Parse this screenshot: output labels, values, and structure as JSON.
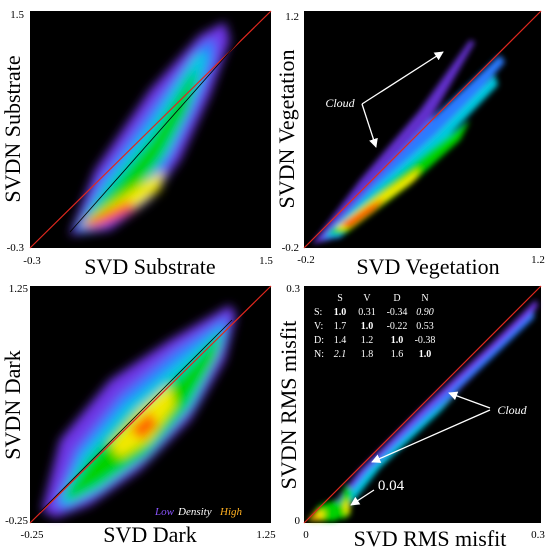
{
  "colors": {
    "background": "#000000",
    "one_to_one_line": "#e0281e",
    "density_low": "#7a3cff",
    "density_mid": "#00d200",
    "density_high": "#ff5a00",
    "text_white": "#ffffff",
    "legend_low": "#8a55ff",
    "legend_high": "#ffb020"
  },
  "chart_data": [
    {
      "type": "heatmap",
      "title": "",
      "xlabel": "SVD Substrate",
      "ylabel": "SVDN Substrate",
      "xlim": [
        -0.3,
        1.5
      ],
      "ylim": [
        -0.3,
        1.5
      ],
      "x_ticks": [
        "-0.3",
        "1.5"
      ],
      "y_ticks": [
        "-0.3",
        "1.5"
      ],
      "one_to_one_line": true
    },
    {
      "type": "heatmap",
      "title": "",
      "xlabel": "SVD Vegetation",
      "ylabel": "SVDN Vegetation",
      "xlim": [
        -0.2,
        1.2
      ],
      "ylim": [
        -0.2,
        1.2
      ],
      "x_ticks": [
        "-0.2",
        "1.2"
      ],
      "y_ticks": [
        "-0.2",
        "1.2"
      ],
      "one_to_one_line": true,
      "annotations": [
        "Cloud"
      ]
    },
    {
      "type": "heatmap",
      "title": "",
      "xlabel": "SVD Dark",
      "ylabel": "SVDN Dark",
      "xlim": [
        -0.25,
        1.25
      ],
      "ylim": [
        -0.25,
        1.25
      ],
      "x_ticks": [
        "-0.25",
        "1.25"
      ],
      "y_ticks": [
        "-0.25",
        "1.25"
      ],
      "one_to_one_line": true,
      "legend": {
        "low": "Low",
        "mid": "Density",
        "high": "High",
        "placement": "bottom-right"
      }
    },
    {
      "type": "heatmap",
      "title": "",
      "xlabel": "SVD RMS misfit",
      "ylabel": "SVDN RMS misfit",
      "xlim": [
        0,
        0.3
      ],
      "ylim": [
        0,
        0.3
      ],
      "x_ticks": [
        "0",
        "0.3"
      ],
      "y_ticks": [
        "0",
        "0.3"
      ],
      "one_to_one_line": true,
      "annotations": [
        "Cloud",
        "0.04"
      ],
      "inset_table": {
        "columns": [
          "S",
          "V",
          "D",
          "N"
        ],
        "rows": [
          {
            "label": "S:",
            "values": [
              "1.0",
              "0.31",
              "-0.34",
              "0.90"
            ]
          },
          {
            "label": "V:",
            "values": [
              "1.7",
              "1.0",
              "-0.22",
              "0.53"
            ]
          },
          {
            "label": "D:",
            "values": [
              "1.4",
              "1.2",
              "1.0",
              "-0.38"
            ]
          },
          {
            "label": "N:",
            "values": [
              "2.1",
              "1.8",
              "1.6",
              "1.0"
            ]
          }
        ]
      }
    }
  ]
}
